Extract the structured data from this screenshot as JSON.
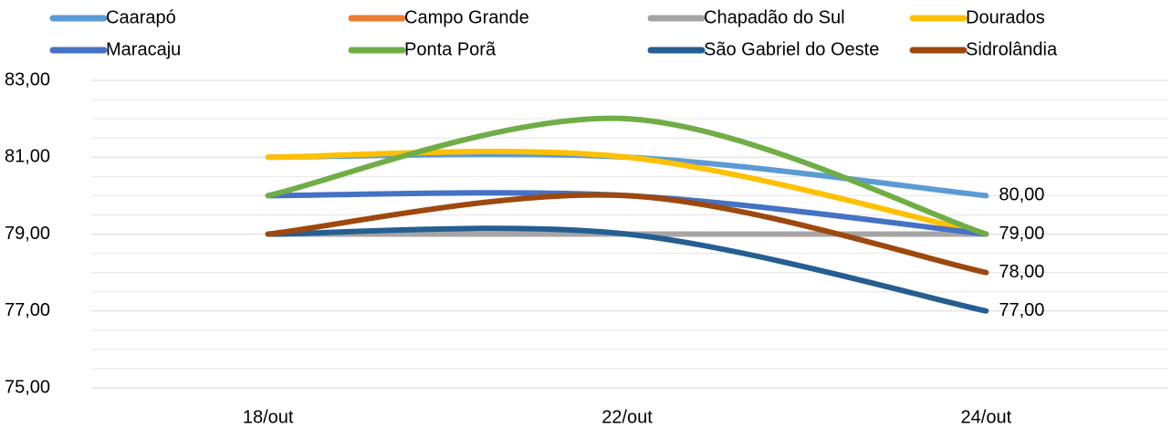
{
  "chart_data": {
    "type": "line",
    "categories": [
      "18/out",
      "22/out",
      "24/out"
    ],
    "series": [
      {
        "name": "Caarapó",
        "color": "#5b9bd5",
        "values": [
          81,
          81,
          80
        ],
        "value_labels": [
          null,
          null,
          "80,00"
        ]
      },
      {
        "name": "Campo Grande",
        "color": "#ed7d31",
        "values": [
          79,
          79,
          79
        ]
      },
      {
        "name": "Chapadão do Sul",
        "color": "#a5a5a5",
        "values": [
          79,
          79,
          79
        ]
      },
      {
        "name": "Dourados",
        "color": "#ffc000",
        "values": [
          81,
          81,
          79
        ]
      },
      {
        "name": "Maracaju",
        "color": "#4472c4",
        "values": [
          80,
          80,
          79
        ]
      },
      {
        "name": "Ponta Porã",
        "color": "#70ad47",
        "values": [
          80,
          82,
          79
        ],
        "value_labels": [
          null,
          null,
          "79,00"
        ]
      },
      {
        "name": "São Gabriel do Oeste",
        "color": "#255e91",
        "values": [
          79,
          79,
          77
        ],
        "value_labels": [
          null,
          null,
          "77,00"
        ]
      },
      {
        "name": "Sidrolândia",
        "color": "#9e480e",
        "values": [
          79,
          80,
          78
        ],
        "value_labels": [
          null,
          null,
          "78,00"
        ]
      }
    ],
    "ylim": [
      75,
      83
    ],
    "yticks": [
      {
        "value": 75,
        "label": "75,00"
      },
      {
        "value": 77,
        "label": "77,00"
      },
      {
        "value": 79,
        "label": "79,00"
      },
      {
        "value": 81,
        "label": "81,00"
      },
      {
        "value": 83,
        "label": "83,00"
      }
    ],
    "minor_yticks": [
      75.5,
      76,
      76.5,
      77.5,
      78,
      78.5,
      79.5,
      80,
      80.5,
      81.5,
      82,
      82.5
    ],
    "grid": true,
    "smooth": true,
    "legend": "top"
  }
}
